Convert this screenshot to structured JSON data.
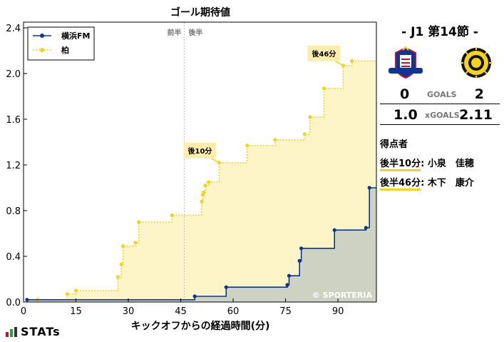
{
  "chart_data": {
    "type": "line",
    "title": "ゴール期待値",
    "xlabel": "キックオフからの経過時間(分)",
    "ylabel": "",
    "xlim": [
      0,
      101
    ],
    "ylim": [
      0,
      2.45
    ],
    "xticks": [
      0,
      15,
      30,
      45,
      60,
      75,
      90
    ],
    "xtick_labels": [
      "0",
      "15",
      "30",
      "45",
      "60",
      "75",
      "90"
    ],
    "yticks": [
      0.0,
      0.4,
      0.8,
      1.2,
      1.6,
      2.0,
      2.4
    ],
    "ytick_labels": [
      "0.0",
      "0.4",
      "0.8",
      "1.2",
      "1.6",
      "2.0",
      "2.4"
    ],
    "halftime_x": 46,
    "halftime_labels": {
      "first": "前半",
      "second": "後半"
    },
    "legend_position": "top-left",
    "series": [
      {
        "name": "横浜FM",
        "color": "#0d3593",
        "style": "solid",
        "fill": "#cdd2c3",
        "x": [
          1,
          49,
          58,
          75.5,
          76,
          79,
          79.5,
          89,
          98,
          99,
          101
        ],
        "y": [
          0.02,
          0.05,
          0.13,
          0.15,
          0.23,
          0.36,
          0.47,
          0.63,
          0.65,
          1.0,
          1.0
        ]
      },
      {
        "name": "柏",
        "color": "#f4d41a",
        "style": "dotted",
        "fill": "#fdf5c8",
        "x": [
          4,
          12.5,
          15,
          27,
          28,
          28.5,
          32,
          33,
          42.5,
          51,
          51.3,
          51.6,
          52,
          53,
          56,
          64,
          72,
          80.5,
          82,
          86,
          91.5,
          94,
          101
        ],
        "y": [
          0.02,
          0.07,
          0.1,
          0.22,
          0.33,
          0.49,
          0.52,
          0.7,
          0.76,
          0.88,
          0.94,
          0.96,
          1.02,
          1.05,
          1.22,
          1.37,
          1.42,
          1.47,
          1.62,
          1.87,
          2.07,
          2.11,
          2.11
        ]
      }
    ],
    "annotations": [
      {
        "label": "後10分",
        "x": 56,
        "y": 1.22
      },
      {
        "label": "後46分",
        "x": 91.5,
        "y": 2.07
      }
    ],
    "credit": "© SPORTERIA"
  },
  "match": {
    "title": "-  J1 第14節  -",
    "home": {
      "goals": "0",
      "xg": "1.0"
    },
    "away": {
      "goals": "2",
      "xg": "2.11"
    },
    "goals_label": "GOALS",
    "xg_label": "xGOALS",
    "scorers_title": "得点者",
    "scorers": [
      {
        "time": "後半10分",
        "name": ": 小泉　佳穂"
      },
      {
        "time": "後半46分",
        "name": ": 木下　康介"
      }
    ]
  },
  "brand": "STATs",
  "colors": {
    "home": "#0d3593",
    "away": "#f4d41a",
    "home_fill": "#cdd2c3",
    "away_fill": "#fdf5c8"
  }
}
